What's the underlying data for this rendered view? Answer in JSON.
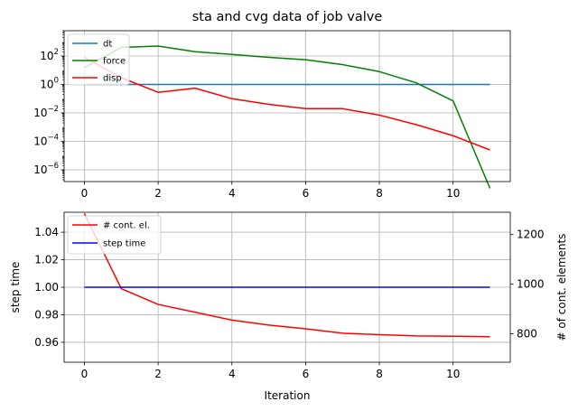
{
  "chart_data": [
    {
      "type": "line",
      "title": "sta and cvg data of job valve",
      "xlabel": "",
      "ylabel": "",
      "yscale": "log",
      "xlim": [
        -0.55,
        11.55
      ],
      "ylim": [
        1.5e-07,
        6000
      ],
      "xticks": [
        0,
        2,
        4,
        6,
        8,
        10
      ],
      "xtick_labels": [
        "0",
        "2",
        "4",
        "6",
        "8",
        "10"
      ],
      "yticks": [
        1e-06,
        0.0001,
        0.01,
        1,
        100
      ],
      "ytick_labels": [
        {
          "base": "10",
          "exp": "−6"
        },
        {
          "base": "10",
          "exp": "−4"
        },
        {
          "base": "10",
          "exp": "−2"
        },
        {
          "base": "10",
          "exp": "0"
        },
        {
          "base": "10",
          "exp": "2"
        }
      ],
      "grid": true,
      "legend_position": "top-left",
      "x": [
        0,
        1,
        2,
        3,
        4,
        5,
        6,
        7,
        8,
        9,
        10,
        11
      ],
      "series": [
        {
          "name": "dt",
          "color": "#1f77b4",
          "values": [
            1,
            1,
            1,
            1,
            1,
            1,
            1,
            1,
            1,
            1,
            1,
            1
          ]
        },
        {
          "name": "force",
          "color": "#008000",
          "values": [
            15,
            400,
            500,
            200,
            130,
            80,
            55,
            25,
            8,
            1.3,
            0.07,
            5e-08
          ]
        },
        {
          "name": "disp",
          "color": "#ff0000",
          "values": [
            80,
            3,
            0.28,
            0.55,
            0.1,
            0.04,
            0.02,
            0.02,
            0.007,
            0.0015,
            0.00025,
            2.5e-05
          ]
        }
      ]
    },
    {
      "type": "line",
      "title": "",
      "xlabel": "Iteration",
      "ylabel": "step time",
      "y2label": "# of cont. elements",
      "xlim": [
        -0.55,
        11.55
      ],
      "ylim": [
        0.9455,
        1.0545
      ],
      "y2lim": [
        685,
        1290
      ],
      "xticks": [
        0,
        2,
        4,
        6,
        8,
        10
      ],
      "xtick_labels": [
        "0",
        "2",
        "4",
        "6",
        "8",
        "10"
      ],
      "yticks": [
        0.96,
        0.98,
        1.0,
        1.02,
        1.04
      ],
      "ytick_labels": [
        "0.96",
        "0.98",
        "1.00",
        "1.02",
        "1.04"
      ],
      "y2ticks": [
        800,
        1000,
        1200
      ],
      "y2tick_labels": [
        "800",
        "1000",
        "1200"
      ],
      "grid": true,
      "legend_position": "top-left",
      "x": [
        0,
        1,
        2,
        3,
        4,
        5,
        6,
        7,
        8,
        9,
        10,
        11
      ],
      "series": [
        {
          "name": "# cont. el.",
          "color": "#ff0000",
          "axis": "right",
          "values": [
            1285,
            982,
            918,
            887,
            855,
            835,
            820,
            802,
            796,
            791,
            790,
            788
          ]
        },
        {
          "name": "step time",
          "color": "#0000ff",
          "axis": "left",
          "values": [
            1,
            1,
            1,
            1,
            1,
            1,
            1,
            1,
            1,
            1,
            1,
            1
          ]
        }
      ]
    }
  ]
}
